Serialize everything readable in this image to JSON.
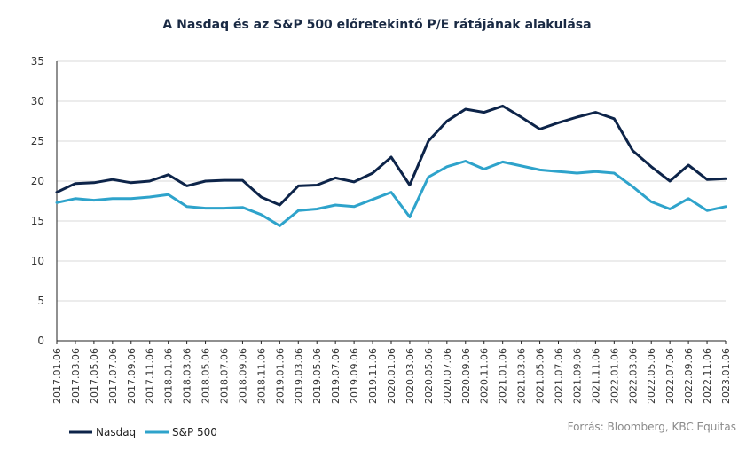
{
  "chart_data": {
    "type": "line",
    "title": "A Nasdaq és az S&P 500 előretekintő P/E rátájának alakulása",
    "source": "Forrás: Bloomberg, KBC Equitas",
    "ylim": [
      0,
      35
    ],
    "yticks": [
      "0",
      "5",
      "10",
      "15",
      "20",
      "25",
      "30",
      "35"
    ],
    "grid": "horizontal",
    "legend_position": "bottom-left",
    "x_labels": [
      "2017.01.06",
      "2017.03.06",
      "2017.05.06",
      "2017.07.06",
      "2017.09.06",
      "2017.11.06",
      "2018.01.06",
      "2018.03.06",
      "2018.05.06",
      "2018.07.06",
      "2018.09.06",
      "2018.11.06",
      "2019.01.06",
      "2019.03.06",
      "2019.05.06",
      "2019.07.06",
      "2019.09.06",
      "2019.11.06",
      "2020.01.06",
      "2020.03.06",
      "2020.05.06",
      "2020.07.06",
      "2020.09.06",
      "2020.11.06",
      "2021.01.06",
      "2021.03.06",
      "2021.05.06",
      "2021.07.06",
      "2021.09.06",
      "2021.11.06",
      "2022.01.06",
      "2022.03.06",
      "2022.05.06",
      "2022.07.06",
      "2022.09.06",
      "2022.11.06",
      "2023.01.06"
    ],
    "series": [
      {
        "name": "Nasdaq",
        "color": "#0d2449",
        "values": [
          18.6,
          19.7,
          19.8,
          20.2,
          19.8,
          20.0,
          20.8,
          19.4,
          20.0,
          20.1,
          20.1,
          18.0,
          17.0,
          19.4,
          19.5,
          20.4,
          19.9,
          21.0,
          23.0,
          19.5,
          25.0,
          27.5,
          29.0,
          28.6,
          29.4,
          28.0,
          26.5,
          27.3,
          28.0,
          28.6,
          27.8,
          23.8,
          21.8,
          20.0,
          22.0,
          20.2,
          20.3
        ]
      },
      {
        "name": "S&P 500",
        "color": "#2ea3cb",
        "values": [
          17.3,
          17.8,
          17.6,
          17.8,
          17.8,
          18.0,
          18.3,
          16.8,
          16.6,
          16.6,
          16.7,
          15.8,
          14.4,
          16.3,
          16.5,
          17.0,
          16.8,
          17.7,
          18.6,
          15.5,
          20.5,
          21.8,
          22.5,
          21.5,
          22.4,
          21.9,
          21.4,
          21.2,
          21.0,
          21.2,
          21.0,
          19.3,
          17.4,
          16.5,
          17.8,
          16.3,
          16.8
        ]
      }
    ]
  }
}
